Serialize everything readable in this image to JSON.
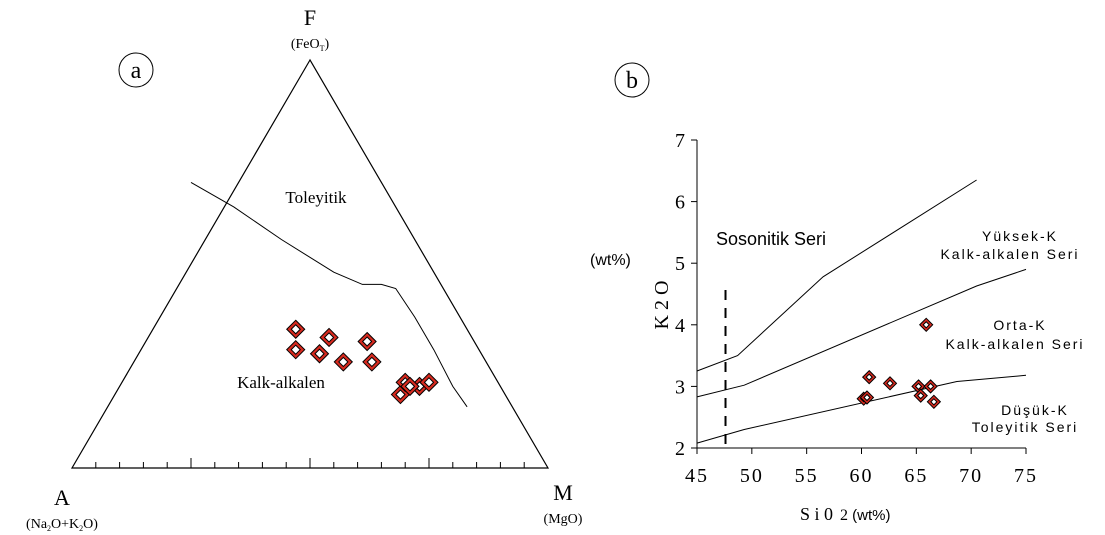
{
  "chart_data": [
    {
      "type": "ternary",
      "panel_label": "a",
      "vertices": {
        "top": {
          "label": "F",
          "sublabel": "(FeOT)"
        },
        "left": {
          "label": "A",
          "sublabel": "(Na2O+K2O)"
        },
        "right": {
          "label": "M",
          "sublabel": "(MgO)"
        }
      },
      "region_labels": [
        "Toleyitik",
        "Kalk-alkalen"
      ],
      "boundary": [
        [
          0.25,
          0.7
        ],
        [
          0.34,
          0.64
        ],
        [
          0.44,
          0.56
        ],
        [
          0.55,
          0.48
        ],
        [
          0.61,
          0.45
        ],
        [
          0.65,
          0.45
        ],
        [
          0.68,
          0.44
        ],
        [
          0.72,
          0.37
        ],
        [
          0.76,
          0.29
        ],
        [
          0.8,
          0.2
        ],
        [
          0.83,
          0.15
        ]
      ],
      "points": [
        [
          0.47,
          0.34
        ],
        [
          0.47,
          0.29
        ],
        [
          0.52,
          0.28
        ],
        [
          0.54,
          0.32
        ],
        [
          0.57,
          0.26
        ],
        [
          0.63,
          0.26
        ],
        [
          0.62,
          0.31
        ],
        [
          0.69,
          0.18
        ],
        [
          0.7,
          0.21
        ],
        [
          0.73,
          0.2
        ],
        [
          0.71,
          0.2
        ],
        [
          0.75,
          0.21
        ]
      ],
      "marker_color": "#d62a1f"
    },
    {
      "type": "scatter",
      "panel_label": "b",
      "xlabel": "SiO2 (wt%)",
      "ylabel": "K2O (wt%)",
      "xlim": [
        45,
        75
      ],
      "ylim": [
        2,
        7
      ],
      "xticks": [
        45,
        50,
        55,
        60,
        65,
        70,
        75
      ],
      "yticks": [
        2,
        3,
        4,
        5,
        6,
        7
      ],
      "dashed_line_x": 47.6,
      "boundaries": [
        [
          [
            45,
            3.25
          ],
          [
            48.7,
            3.5
          ],
          [
            56.5,
            4.78
          ],
          [
            70.5,
            6.35
          ]
        ],
        [
          [
            45,
            2.83
          ],
          [
            49.3,
            3.02
          ],
          [
            70.5,
            4.63
          ],
          [
            75,
            4.9
          ]
        ],
        [
          [
            45,
            2.08
          ],
          [
            49.3,
            2.3
          ],
          [
            68.7,
            3.08
          ],
          [
            75,
            3.18
          ]
        ]
      ],
      "series_labels": [
        "Sosonitik Seri",
        "Yüksek-K",
        "Kalk-alkalen Seri",
        "Orta-K",
        "Kalk-alkalen Seri",
        "Düşük-K",
        "Toleyitik Seri"
      ],
      "points": [
        [
          60.2,
          2.8
        ],
        [
          60.5,
          2.82
        ],
        [
          60.7,
          3.15
        ],
        [
          62.6,
          3.05
        ],
        [
          65.2,
          3.0
        ],
        [
          65.4,
          2.85
        ],
        [
          65.9,
          4.0
        ],
        [
          66.3,
          3.0
        ],
        [
          66.6,
          2.75
        ]
      ],
      "marker_color": "#d62a1f"
    }
  ]
}
